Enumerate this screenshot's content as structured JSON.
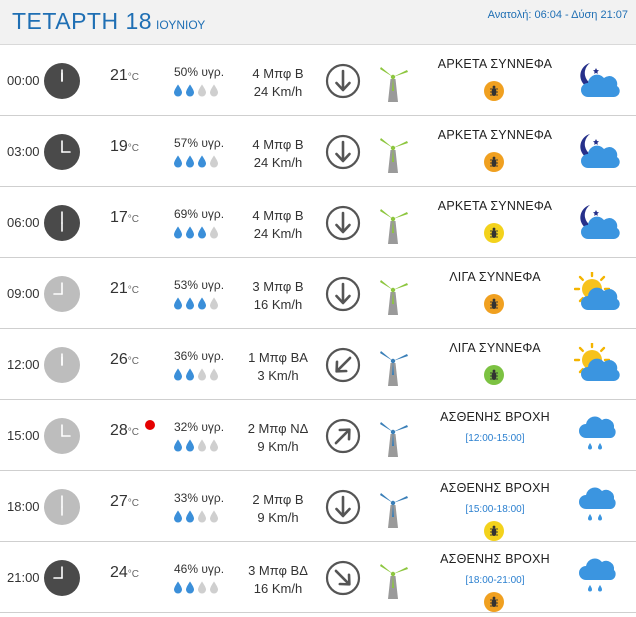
{
  "header": {
    "day": "ΤΕΤΑΡΤΗ 18",
    "month": "ΙΟΥΝΙΟΥ",
    "sun_times": "Ανατολή: 06:04  - Δύση 21:07"
  },
  "colors": {
    "accent_blue": "#1f6fb4",
    "warn_red": "#e50000",
    "bug_orange": "#f0a020",
    "bug_yellow": "#f3d21c",
    "bug_green": "#7cc242"
  },
  "rows": [
    {
      "time": "00:00",
      "clock": "dark",
      "temp": "21",
      "unit": "°C",
      "warn": false,
      "humidity": "50% υγρ.",
      "drops_filled": 2,
      "wind_force": "4 Μπφ Β",
      "wind_speed": "24 Km/h",
      "wind_dir": "down-arrow-icon",
      "turbine": "green-turbine-icon",
      "condition": "ΑΡΚΕΤΑ ΣΥΝΝΕΦΑ",
      "hours": "",
      "bug": "orange",
      "icon": "moon-cloud-icon"
    },
    {
      "time": "03:00",
      "clock": "dark",
      "temp": "19",
      "unit": "°C",
      "warn": false,
      "humidity": "57% υγρ.",
      "drops_filled": 3,
      "wind_force": "4 Μπφ Β",
      "wind_speed": "24 Km/h",
      "wind_dir": "down-arrow-icon",
      "turbine": "green-turbine-icon",
      "condition": "ΑΡΚΕΤΑ ΣΥΝΝΕΦΑ",
      "hours": "",
      "bug": "orange",
      "icon": "moon-cloud-icon"
    },
    {
      "time": "06:00",
      "clock": "dark",
      "temp": "17",
      "unit": "°C",
      "warn": false,
      "humidity": "69% υγρ.",
      "drops_filled": 3,
      "wind_force": "4 Μπφ Β",
      "wind_speed": "24 Km/h",
      "wind_dir": "down-arrow-icon",
      "turbine": "green-turbine-icon",
      "condition": "ΑΡΚΕΤΑ ΣΥΝΝΕΦΑ",
      "hours": "",
      "bug": "yellow",
      "icon": "moon-cloud-icon"
    },
    {
      "time": "09:00",
      "clock": "light",
      "temp": "21",
      "unit": "°C",
      "warn": false,
      "humidity": "53% υγρ.",
      "drops_filled": 3,
      "wind_force": "3 Μπφ Β",
      "wind_speed": "16 Km/h",
      "wind_dir": "down-arrow-icon",
      "turbine": "green-turbine-icon",
      "condition": "ΛΙΓΑ ΣΥΝΝΕΦΑ",
      "hours": "",
      "bug": "orange",
      "icon": "sun-cloud-icon"
    },
    {
      "time": "12:00",
      "clock": "light",
      "temp": "26",
      "unit": "°C",
      "warn": false,
      "humidity": "36% υγρ.",
      "drops_filled": 2,
      "wind_force": "1 Μπφ ΒΑ",
      "wind_speed": "3 Km/h",
      "wind_dir": "down-left-arrow-icon",
      "turbine": "blue-turbine-icon",
      "condition": "ΛΙΓΑ ΣΥΝΝΕΦΑ",
      "hours": "",
      "bug": "green",
      "icon": "sun-cloud-icon"
    },
    {
      "time": "15:00",
      "clock": "light",
      "temp": "28",
      "unit": "°C",
      "warn": true,
      "humidity": "32% υγρ.",
      "drops_filled": 2,
      "wind_force": "2 Μπφ ΝΔ",
      "wind_speed": "9 Km/h",
      "wind_dir": "up-right-arrow-icon",
      "turbine": "blue-turbine-icon",
      "condition": "ΑΣΘΕΝΗΣ ΒΡΟΧΗ",
      "hours": "[12:00-15:00]",
      "bug": "",
      "icon": "rain-cloud-icon"
    },
    {
      "time": "18:00",
      "clock": "light",
      "temp": "27",
      "unit": "°C",
      "warn": false,
      "humidity": "33% υγρ.",
      "drops_filled": 2,
      "wind_force": "2 Μπφ Β",
      "wind_speed": "9 Km/h",
      "wind_dir": "down-arrow-icon",
      "turbine": "blue-turbine-icon",
      "condition": "ΑΣΘΕΝΗΣ ΒΡΟΧΗ",
      "hours": "[15:00-18:00]",
      "bug": "yellow",
      "icon": "rain-cloud-icon"
    },
    {
      "time": "21:00",
      "clock": "dark",
      "temp": "24",
      "unit": "°C",
      "warn": false,
      "humidity": "46% υγρ.",
      "drops_filled": 2,
      "wind_force": "3 Μπφ ΒΔ",
      "wind_speed": "16 Km/h",
      "wind_dir": "down-right-arrow-icon",
      "turbine": "green-turbine-icon",
      "condition": "ΑΣΘΕΝΗΣ ΒΡΟΧΗ",
      "hours": "[18:00-21:00]",
      "bug": "orange",
      "icon": "rain-cloud-icon"
    }
  ]
}
